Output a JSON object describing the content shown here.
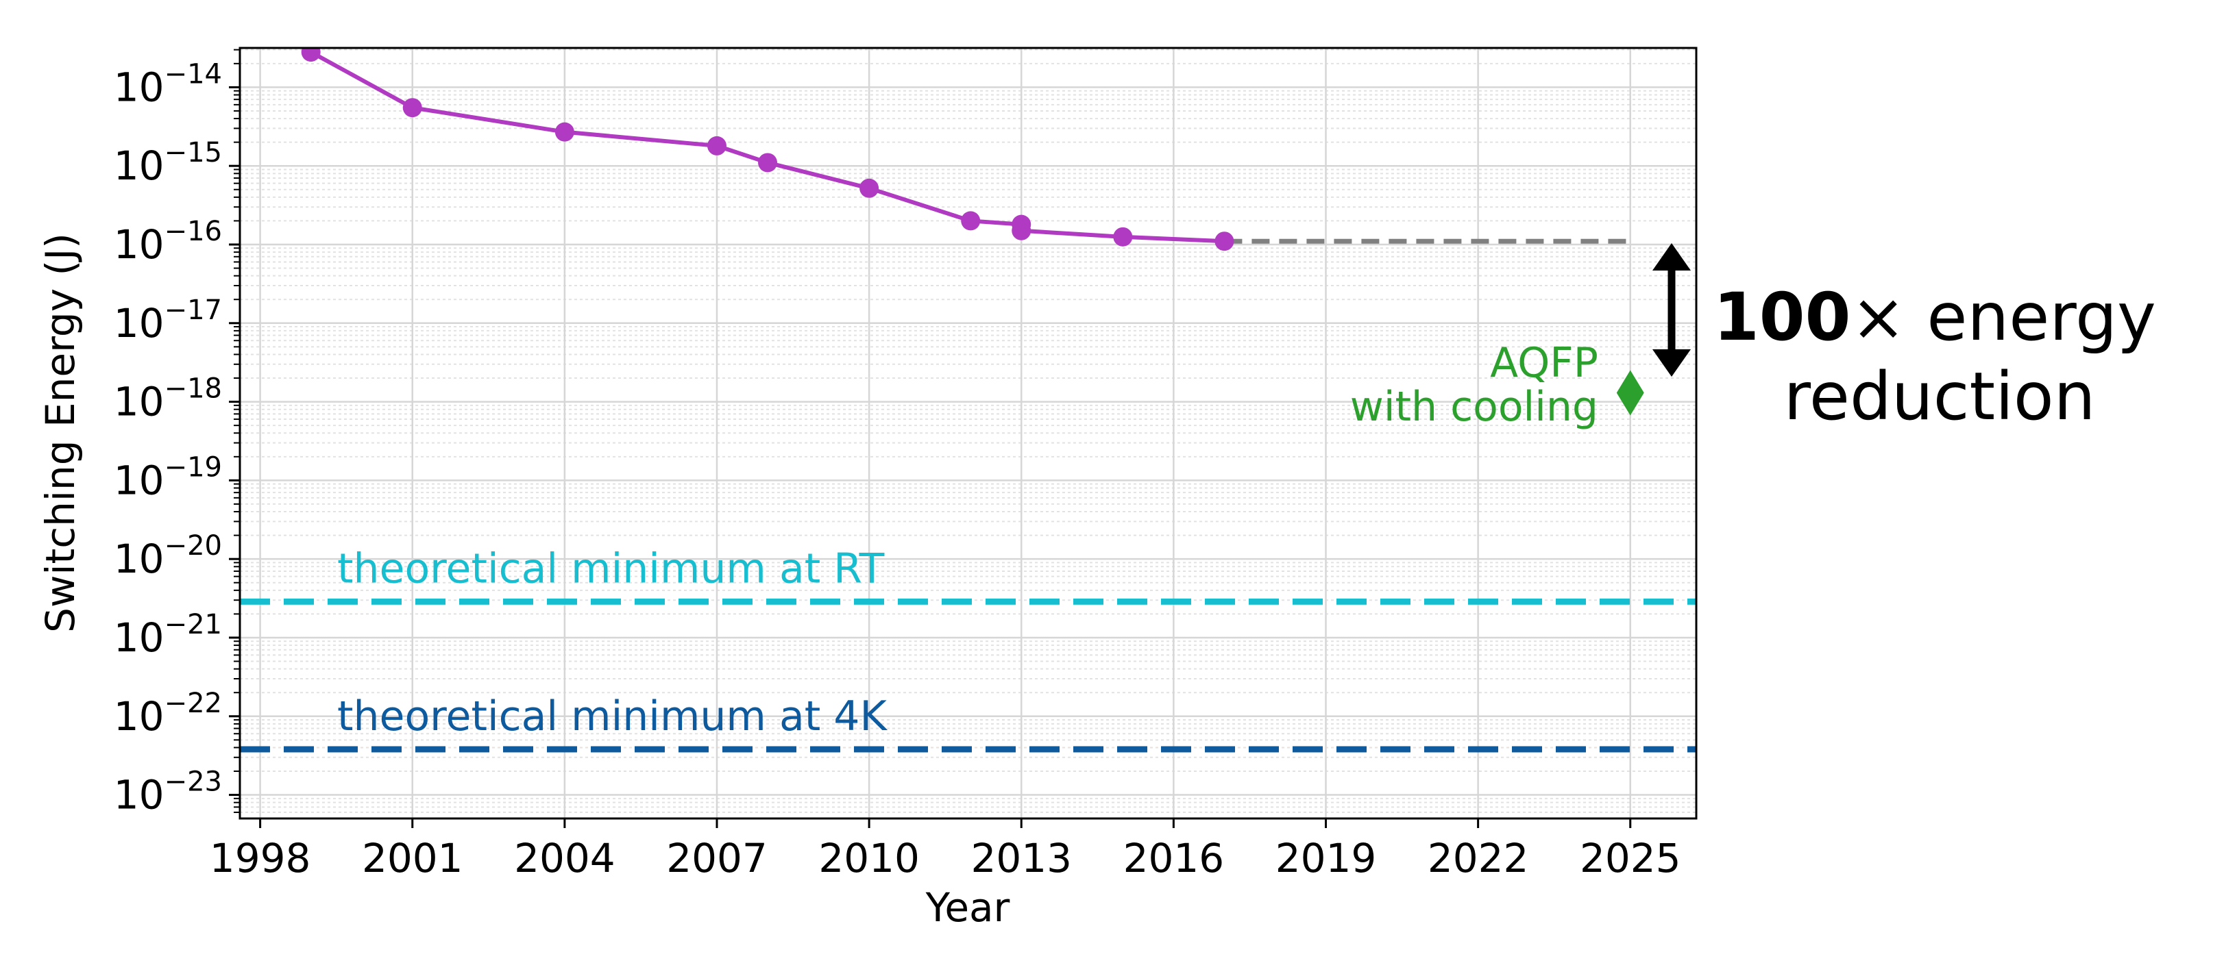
{
  "chart_data": {
    "type": "line",
    "xlabel": "Year",
    "ylabel": "Switching Energy (J)",
    "xlim": [
      1997.6,
      2026.3
    ],
    "ylim_log10": [
      -23.3,
      -13.5
    ],
    "yscale": "log",
    "grid": true,
    "x_ticks": [
      "1998",
      "2001",
      "2004",
      "2007",
      "2010",
      "2013",
      "2016",
      "2019",
      "2022",
      "2025"
    ],
    "y_ticks": [
      {
        "exp": -14,
        "base": "10",
        "sup": "−14"
      },
      {
        "exp": -15,
        "base": "10",
        "sup": "−15"
      },
      {
        "exp": -16,
        "base": "10",
        "sup": "−16"
      },
      {
        "exp": -17,
        "base": "10",
        "sup": "−17"
      },
      {
        "exp": -18,
        "base": "10",
        "sup": "−18"
      },
      {
        "exp": -19,
        "base": "10",
        "sup": "−19"
      },
      {
        "exp": -20,
        "base": "10",
        "sup": "−20"
      },
      {
        "exp": -21,
        "base": "10",
        "sup": "−21"
      },
      {
        "exp": -22,
        "base": "10",
        "sup": "−22"
      },
      {
        "exp": -23,
        "base": "10",
        "sup": "−23"
      }
    ],
    "series": [
      {
        "color": "#b03ac1",
        "x": [
          1999,
          2001,
          2004,
          2007,
          2008,
          2010,
          2012,
          2013,
          2013,
          2015,
          2017
        ],
        "y": [
          2.8e-14,
          5.5e-15,
          2.7e-15,
          1.8e-15,
          1.1e-15,
          5.2e-16,
          2e-16,
          1.8e-16,
          1.5e-16,
          1.25e-16,
          1.1e-16
        ]
      }
    ],
    "extension": {
      "x": [
        2017,
        2025
      ],
      "y": 1.1e-16,
      "color": "#808080"
    },
    "aqfp_point": {
      "x": 2025,
      "y": 1.3e-18,
      "color": "#2ca02c",
      "label_lines": [
        "AQFP",
        "with cooling"
      ]
    },
    "reference_lines": [
      {
        "label": "theoretical minimum at RT",
        "y": 2.87e-21,
        "color": "#17becf"
      },
      {
        "label": "theoretical minimum at 4K",
        "y": 3.8e-23,
        "color": "#0d5a9e"
      }
    ],
    "callout": {
      "bold": "100",
      "rest": "× energy",
      "line2": "reduction"
    }
  }
}
